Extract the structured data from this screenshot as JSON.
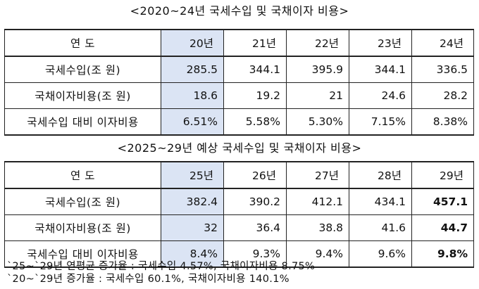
{
  "table1": {
    "title": "<2020~24년 국세수입 및 국채이자 비용>",
    "header": [
      "연 도",
      "20년",
      "21년",
      "22년",
      "23년",
      "24년"
    ],
    "rows": [
      {
        "label": "국세수입(조 원)",
        "values": [
          "285.5",
          "344.1",
          "395.9",
          "344.1",
          "336.5"
        ]
      },
      {
        "label": "국채이자비용(조 원)",
        "values": [
          "18.6",
          "19.2",
          "21",
          "24.6",
          "28.2"
        ]
      },
      {
        "label": "국세수입 대비 이자비용",
        "values": [
          "6.51%",
          "5.58%",
          "5.30%",
          "7.15%",
          "8.38%"
        ]
      }
    ]
  },
  "table2": {
    "title": "<2025~29년 예상 국세수입 및 국채이자 비용>",
    "header": [
      "연 도",
      "25년",
      "26년",
      "27년",
      "28년",
      "29년"
    ],
    "rows": [
      {
        "label": "국세수입(조 원)",
        "values": [
          "382.4",
          "390.2",
          "412.1",
          "434.1",
          "457.1"
        ]
      },
      {
        "label": "국채이자비용(조 원)",
        "values": [
          "32",
          "36.4",
          "38.8",
          "41.6",
          "44.7"
        ]
      },
      {
        "label": "국세수입 대비 이자비용",
        "values": [
          "8.4%",
          "9.3%",
          "9.4%",
          "9.6%",
          "9.8%"
        ]
      }
    ]
  },
  "footnotes": [
    "`25~`29년 연평균 증가율 : 국세수입 4.57%, 국채이자비용 8.75%",
    "`20~`29년 증가율 : 국세수입 60.1%, 국채이자비용 140.1%"
  ],
  "colors": {
    "highlight": "#dbe4f4",
    "border": "#222222"
  }
}
